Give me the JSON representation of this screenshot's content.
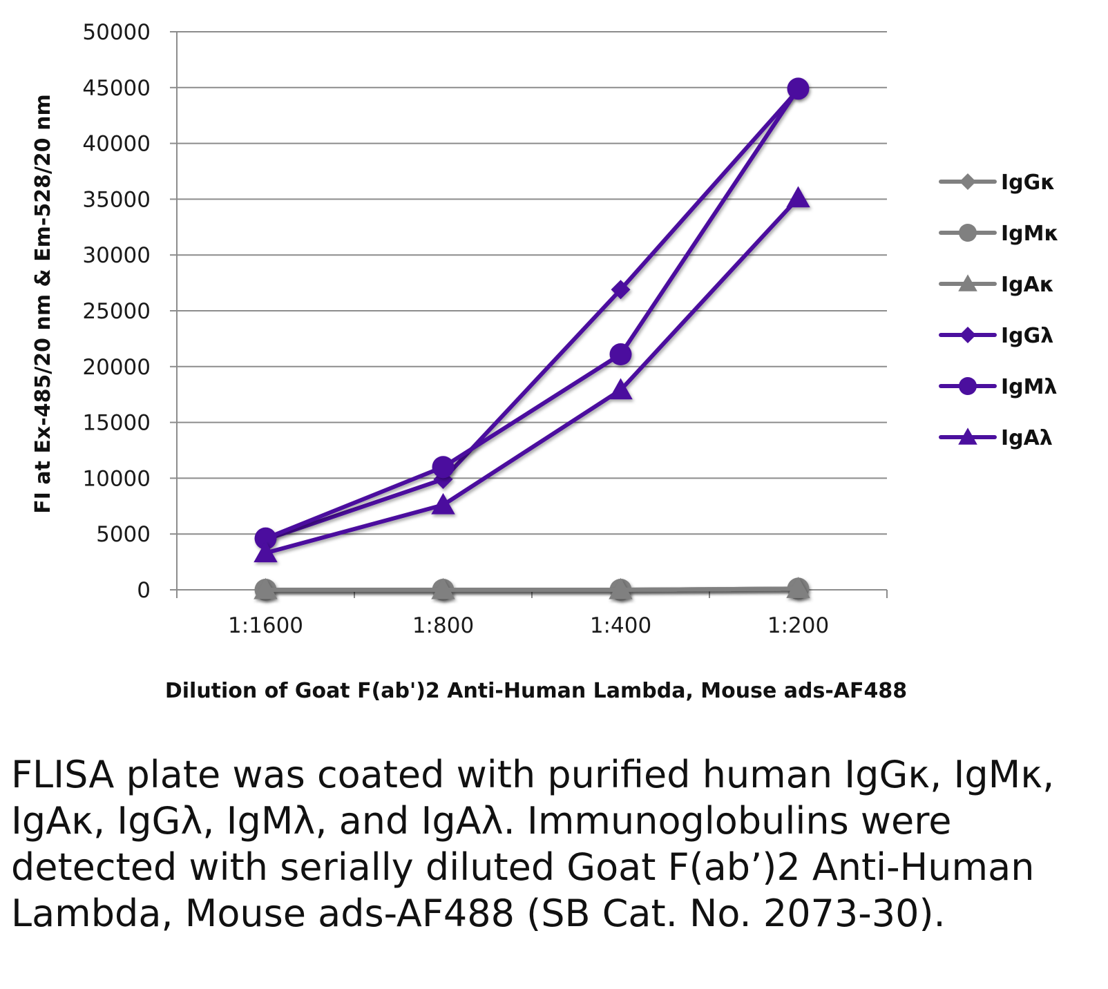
{
  "chart_data": {
    "type": "line",
    "title": "",
    "xlabel": "Dilution of Goat F(ab')2 Anti-Human Lambda, Mouse ads-AF488",
    "ylabel": "FI at Ex-485/20 nm & Em-528/20 nm",
    "categories": [
      "1:1600",
      "1:800",
      "1:400",
      "1:200"
    ],
    "ylim": [
      0,
      50000
    ],
    "yticks": [
      0,
      5000,
      10000,
      15000,
      20000,
      25000,
      30000,
      35000,
      40000,
      45000,
      50000
    ],
    "grid": "horizontal",
    "legend_position": "right",
    "series": [
      {
        "name": "IgGκ",
        "marker": "diamond",
        "color": "#808080",
        "values": [
          0,
          0,
          0,
          100
        ]
      },
      {
        "name": "IgMκ",
        "marker": "circle",
        "color": "#808080",
        "values": [
          0,
          0,
          0,
          100
        ]
      },
      {
        "name": "IgAκ",
        "marker": "triangle",
        "color": "#808080",
        "values": [
          0,
          0,
          0,
          100
        ]
      },
      {
        "name": "IgGλ",
        "marker": "diamond",
        "color": "#4b0f9e",
        "values": [
          4500,
          9900,
          26900,
          44800
        ]
      },
      {
        "name": "IgMλ",
        "marker": "circle",
        "color": "#4b0f9e",
        "values": [
          4600,
          11000,
          21100,
          44900
        ]
      },
      {
        "name": "IgAλ",
        "marker": "triangle",
        "color": "#4b0f9e",
        "values": [
          3300,
          7600,
          17900,
          35100
        ]
      }
    ]
  },
  "caption": "FLISA plate was coated with purified human IgGκ, IgMκ, IgAκ, IgGλ, IgMλ, and IgAλ. Immunoglobulins were detected with serially diluted Goat F(ab’)2 Anti-Human Lambda, Mouse ads-AF488 (SB Cat. No. 2073-30)."
}
